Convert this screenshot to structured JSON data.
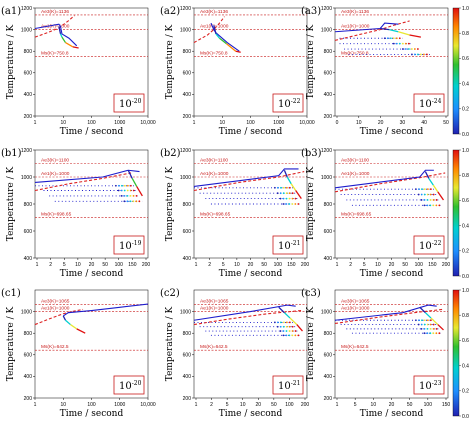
{
  "colors": {
    "ae3": "#c81a1a",
    "ae1": "#c81a1a",
    "ms": "#c81a1a",
    "cooling": "#1c1ccc",
    "kinetic_dashed": "#dd2222",
    "colorbar": [
      "#2020b0",
      "#1e90ff",
      "#00d0d0",
      "#30c030",
      "#e8e830",
      "#ff8800",
      "#e01010"
    ]
  },
  "colorbar": {
    "ticks": [
      "0.0",
      "0.2",
      "0.4",
      "0.6",
      "0.8",
      "1.0"
    ]
  },
  "chart_data": [
    {
      "id": "a1",
      "label": "(a1)",
      "type": "line",
      "row": 0,
      "col": 0,
      "scale": "log",
      "xlim": [
        1,
        10000
      ],
      "ylim": [
        200,
        1200
      ],
      "xticks": [
        {
          "v": 1,
          "t": "1"
        },
        {
          "v": 10,
          "t": "10"
        },
        {
          "v": 100,
          "t": "100"
        },
        {
          "v": 1000,
          "t": "1000"
        },
        {
          "v": 10000,
          "t": "10,000"
        }
      ],
      "yticks": [
        200,
        400,
        600,
        800,
        1000,
        1200
      ],
      "xlabel": "Time / second",
      "ylabel": "Temperature / K",
      "ae3": 1136,
      "ae3_label": "Ae3(K)=1136",
      "ae1": 1000,
      "ae1_label": "Ae1(K)=1000",
      "ms": 750.8,
      "ms_label": "Ms(K)=750.8",
      "level_base": "10",
      "level_exp": "-20",
      "cooling": [
        [
          1,
          1010
        ],
        [
          7,
          1050
        ],
        [
          8,
          1030
        ],
        [
          9,
          960
        ],
        [
          16,
          920
        ],
        [
          30,
          850
        ]
      ],
      "dashed": [
        [
          1,
          930
        ],
        [
          3,
          975
        ],
        [
          7,
          1015
        ],
        [
          15,
          1080
        ],
        [
          25,
          1130
        ]
      ],
      "isothermal": [],
      "colored": [
        [
          [
            7,
            1030
          ],
          [
            8,
            960
          ],
          [
            9,
            930
          ],
          [
            12,
            880
          ],
          [
            22,
            840
          ],
          [
            35,
            830
          ]
        ]
      ]
    },
    {
      "id": "a2",
      "label": "(a2)",
      "type": "line",
      "row": 0,
      "col": 1,
      "scale": "log",
      "xlim": [
        1,
        10000
      ],
      "ylim": [
        200,
        1200
      ],
      "xticks": [
        {
          "v": 1,
          "t": "1"
        },
        {
          "v": 10,
          "t": "10"
        },
        {
          "v": 100,
          "t": "100"
        },
        {
          "v": 1000,
          "t": "1000"
        },
        {
          "v": 10000,
          "t": "10,000"
        }
      ],
      "yticks": [
        200,
        400,
        600,
        800,
        1000,
        1200
      ],
      "xlabel": "Time / second",
      "ylabel": "Temperature / K",
      "ae3": 1136,
      "ae3_label": "Ae3(K)=1136",
      "ae1": 1000,
      "ae1_label": "Ae1(K)=1000",
      "ms": 750.8,
      "ms_label": "Ms(K)=750.8",
      "level_base": "10",
      "level_exp": "-22",
      "cooling": [
        [
          4,
          1060
        ],
        [
          5,
          1000
        ],
        [
          6,
          970
        ],
        [
          15,
          880
        ],
        [
          40,
          800
        ]
      ],
      "dashed": [
        [
          1,
          880
        ],
        [
          3,
          950
        ],
        [
          5,
          1000
        ],
        [
          8,
          1060
        ],
        [
          12,
          1120
        ]
      ],
      "isothermal": [],
      "colored": [
        [
          [
            5,
            1040
          ],
          [
            6,
            960
          ],
          [
            8,
            920
          ],
          [
            14,
            870
          ],
          [
            30,
            800
          ],
          [
            45,
            790
          ]
        ]
      ]
    },
    {
      "id": "a3",
      "label": "(a3)",
      "type": "line",
      "row": 0,
      "col": 2,
      "scale": "linear",
      "xlim": [
        0,
        50
      ],
      "ylim": [
        200,
        1200
      ],
      "xticks": [
        {
          "v": 0,
          "t": "0"
        },
        {
          "v": 10,
          "t": "10"
        },
        {
          "v": 20,
          "t": "20"
        },
        {
          "v": 30,
          "t": "30"
        },
        {
          "v": 40,
          "t": "40"
        },
        {
          "v": 50,
          "t": "50"
        }
      ],
      "yticks": [
        200,
        400,
        600,
        800,
        1000,
        1200
      ],
      "xlabel": "Time / second",
      "ylabel": "Temperature / K",
      "ae3": 1136,
      "ae3_label": "Ae3(K)=1136",
      "ae1": 1000,
      "ae1_label": "Ae1(K)=1000",
      "ms": 750.8,
      "ms_label": "Ms(K)=750.8",
      "level_base": "10",
      "level_exp": "-24",
      "cooling": [
        [
          0,
          980
        ],
        [
          20,
          1010
        ],
        [
          22,
          1060
        ],
        [
          28,
          1050
        ]
      ],
      "dashed": [
        [
          0,
          900
        ],
        [
          10,
          950
        ],
        [
          20,
          1000
        ],
        [
          26,
          1040
        ],
        [
          33,
          1080
        ]
      ],
      "isothermal": [
        [
          2,
          30,
          920
        ],
        [
          2,
          34,
          870
        ],
        [
          4,
          38,
          820
        ],
        [
          6,
          42,
          770
        ]
      ],
      "colored": [
        [
          [
            20,
            1010
          ],
          [
            24,
            1000
          ],
          [
            28,
            980
          ],
          [
            33,
            950
          ],
          [
            38,
            930
          ]
        ]
      ]
    },
    {
      "id": "b1",
      "label": "(b1)",
      "type": "line",
      "row": 1,
      "col": 0,
      "scale": "linear",
      "xlim": [
        0,
        200
      ],
      "ylim": [
        400,
        1200
      ],
      "xticks": [
        {
          "v": 1,
          "t": "1"
        },
        {
          "v": 2,
          "t": "2"
        },
        {
          "v": 5,
          "t": "5"
        },
        {
          "v": 10,
          "t": "10"
        },
        {
          "v": 20,
          "t": "20"
        },
        {
          "v": 50,
          "t": "50"
        },
        {
          "v": 100,
          "t": "100"
        },
        {
          "v": 150,
          "t": "150"
        },
        {
          "v": 200,
          "t": "200"
        }
      ],
      "yticks": [
        400,
        600,
        800,
        1000,
        1200
      ],
      "xlabel": "Time / second",
      "ylabel": "Temperature / K",
      "ae3": 1100,
      "ae3_label": "Ae3(K)=1100",
      "ae1": 1000,
      "ae1_label": "Ae1(K)=1000",
      "ms": 698.65,
      "ms_label": "Ms(K)=698.65",
      "level_base": "10",
      "level_exp": "-19",
      "cooling": [
        [
          0,
          960
        ],
        [
          120,
          1000
        ],
        [
          165,
          1050
        ],
        [
          185,
          1040
        ]
      ],
      "dashed": [
        [
          0,
          900
        ],
        [
          60,
          950
        ],
        [
          120,
          990
        ],
        [
          170,
          1030
        ]
      ],
      "isothermal": [
        [
          0,
          175,
          935
        ],
        [
          15,
          180,
          900
        ],
        [
          25,
          185,
          860
        ],
        [
          35,
          190,
          820
        ]
      ],
      "colored": [
        [
          [
            165,
            1050
          ],
          [
            172,
            990
          ],
          [
            180,
            930
          ],
          [
            190,
            860
          ]
        ]
      ]
    },
    {
      "id": "b2",
      "label": "(b2)",
      "type": "line",
      "row": 1,
      "col": 1,
      "scale": "linear",
      "xlim": [
        0,
        200
      ],
      "ylim": [
        400,
        1200
      ],
      "xticks": [
        {
          "v": 1,
          "t": "1"
        },
        {
          "v": 2,
          "t": "2"
        },
        {
          "v": 5,
          "t": "5"
        },
        {
          "v": 10,
          "t": "10"
        },
        {
          "v": 20,
          "t": "20"
        },
        {
          "v": 50,
          "t": "50"
        },
        {
          "v": 100,
          "t": "100"
        },
        {
          "v": 150,
          "t": "150"
        },
        {
          "v": 200,
          "t": "200"
        }
      ],
      "yticks": [
        400,
        600,
        800,
        1000,
        1200
      ],
      "xlabel": "Time / second",
      "ylabel": "Temperature / K",
      "ae3": 1100,
      "ae3_label": "Ae3(K)=1100",
      "ae1": 1000,
      "ae1_label": "Ae1(K)=1000",
      "ms": 698.65,
      "ms_label": "Ms(K)=698.65",
      "level_base": "10",
      "level_exp": "-21",
      "cooling": [
        [
          0,
          930
        ],
        [
          150,
          1010
        ],
        [
          160,
          1060
        ],
        [
          185,
          1060
        ]
      ],
      "dashed": [
        [
          0,
          900
        ],
        [
          80,
          960
        ],
        [
          150,
          1000
        ],
        [
          195,
          1040
        ]
      ],
      "isothermal": [
        [
          0,
          175,
          920
        ],
        [
          10,
          180,
          880
        ],
        [
          20,
          185,
          840
        ],
        [
          30,
          190,
          800
        ]
      ],
      "colored": [
        [
          [
            160,
            1050
          ],
          [
            165,
            1000
          ],
          [
            172,
            950
          ],
          [
            180,
            900
          ],
          [
            190,
            840
          ]
        ]
      ]
    },
    {
      "id": "b3",
      "label": "(b3)",
      "type": "line",
      "row": 1,
      "col": 2,
      "scale": "linear",
      "xlim": [
        0,
        200
      ],
      "ylim": [
        400,
        1200
      ],
      "xticks": [
        {
          "v": 1,
          "t": "1"
        },
        {
          "v": 2,
          "t": "2"
        },
        {
          "v": 5,
          "t": "5"
        },
        {
          "v": 10,
          "t": "10"
        },
        {
          "v": 20,
          "t": "20"
        },
        {
          "v": 50,
          "t": "50"
        },
        {
          "v": 100,
          "t": "100"
        },
        {
          "v": 150,
          "t": "150"
        },
        {
          "v": 200,
          "t": "200"
        }
      ],
      "yticks": [
        400,
        600,
        800,
        1000,
        1200
      ],
      "xlabel": "Time / second",
      "ylabel": "Temperature / K",
      "ae3": 1100,
      "ae3_label": "Ae3(K)=1100",
      "ae1": 1000,
      "ae1_label": "Ae1(K)=1000",
      "ms": 698.65,
      "ms_label": "Ms(K)=698.65",
      "level_base": "10",
      "level_exp": "-22",
      "cooling": [
        [
          0,
          920
        ],
        [
          150,
          1000
        ],
        [
          160,
          1050
        ],
        [
          175,
          1050
        ]
      ],
      "dashed": [
        [
          0,
          890
        ],
        [
          80,
          950
        ],
        [
          150,
          995
        ],
        [
          195,
          1030
        ]
      ],
      "isothermal": [
        [
          0,
          175,
          910
        ],
        [
          10,
          180,
          870
        ],
        [
          20,
          185,
          830
        ],
        [
          30,
          190,
          790
        ]
      ],
      "colored": [
        [
          [
            160,
            1040
          ],
          [
            166,
            990
          ],
          [
            174,
            940
          ],
          [
            182,
            890
          ],
          [
            192,
            830
          ]
        ]
      ]
    },
    {
      "id": "c1",
      "label": "(c1)",
      "type": "line",
      "row": 2,
      "col": 0,
      "scale": "log",
      "xlim": [
        1,
        10000
      ],
      "ylim": [
        200,
        1200
      ],
      "xticks": [
        {
          "v": 1,
          "t": "1"
        },
        {
          "v": 10,
          "t": "10"
        },
        {
          "v": 100,
          "t": "100"
        },
        {
          "v": 1000,
          "t": "1000"
        },
        {
          "v": 10000,
          "t": "10,000"
        }
      ],
      "yticks": [
        200,
        400,
        600,
        800,
        1000
      ],
      "xlabel": "Time / second",
      "ylabel": "Temperature / K",
      "ae3": 1065,
      "ae3_label": "Ae3(K)=1065",
      "ae1": 1000,
      "ae1_label": "Ae1(K)=1000",
      "ms": 642.5,
      "ms_label": "Ms(K)=642.5",
      "level_base": "10",
      "level_exp": "-20",
      "cooling": [
        [
          10,
          960
        ],
        [
          15,
          990
        ],
        [
          100,
          1010
        ],
        [
          1000,
          1040
        ],
        [
          10000,
          1070
        ]
      ],
      "dashed": [
        [
          1,
          880
        ],
        [
          3,
          930
        ],
        [
          10,
          980
        ],
        [
          20,
          1000
        ],
        [
          50,
          1020
        ]
      ],
      "isothermal": [],
      "colored": [
        [
          [
            10,
            960
          ],
          [
            12,
            920
          ],
          [
            18,
            880
          ],
          [
            30,
            840
          ],
          [
            60,
            800
          ]
        ]
      ]
    },
    {
      "id": "c2",
      "label": "(c2)",
      "type": "line",
      "row": 2,
      "col": 1,
      "scale": "linear",
      "xlim": [
        0,
        200
      ],
      "ylim": [
        200,
        1200
      ],
      "xticks": [
        {
          "v": 1,
          "t": "1"
        },
        {
          "v": 2,
          "t": "2"
        },
        {
          "v": 5,
          "t": "5"
        },
        {
          "v": 10,
          "t": "10"
        },
        {
          "v": 20,
          "t": "20"
        },
        {
          "v": 50,
          "t": "50"
        },
        {
          "v": 100,
          "t": "100"
        },
        {
          "v": 200,
          "t": "200"
        }
      ],
      "yticks": [
        200,
        400,
        600,
        800,
        1000
      ],
      "xlabel": "Time / second",
      "ylabel": "Temperature / K",
      "ae3": 1065,
      "ae3_label": "Ae3(K)=1065",
      "ae1": 1000,
      "ae1_label": "Ae1(K)=1000",
      "ms": 642.5,
      "ms_label": "Ms(K)=642.5",
      "level_base": "10",
      "level_exp": "-21",
      "cooling": [
        [
          0,
          920
        ],
        [
          100,
          1000
        ],
        [
          165,
          1060
        ],
        [
          180,
          1050
        ]
      ],
      "dashed": [
        [
          0,
          880
        ],
        [
          60,
          930
        ],
        [
          130,
          980
        ],
        [
          190,
          1010
        ]
      ],
      "isothermal": [
        [
          0,
          175,
          900
        ],
        [
          10,
          180,
          860
        ],
        [
          20,
          185,
          820
        ],
        [
          30,
          190,
          780
        ]
      ],
      "colored": [
        [
          [
            150,
            1040
          ],
          [
            160,
            990
          ],
          [
            170,
            940
          ],
          [
            182,
            880
          ],
          [
            192,
            820
          ]
        ]
      ]
    },
    {
      "id": "c3",
      "label": "(c3)",
      "type": "line",
      "row": 2,
      "col": 2,
      "scale": "linear",
      "xlim": [
        0,
        200
      ],
      "ylim": [
        200,
        1200
      ],
      "xticks": [
        {
          "v": 1,
          "t": "1"
        },
        {
          "v": 5,
          "t": "5"
        },
        {
          "v": 10,
          "t": "10"
        },
        {
          "v": 20,
          "t": "20"
        },
        {
          "v": 50,
          "t": "50"
        },
        {
          "v": 100,
          "t": "100"
        },
        {
          "v": 150,
          "t": "150"
        }
      ],
      "yticks": [
        200,
        400,
        600,
        800,
        1000
      ],
      "xlabel": "Time / second",
      "ylabel": "Temperature / K",
      "ae3": 1065,
      "ae3_label": "Ae3(K)=1065",
      "ae1": 1000,
      "ae1_label": "Ae1(K)=1000",
      "ms": 642.5,
      "ms_label": "Ms(K)=642.5",
      "level_base": "10",
      "level_exp": "-23",
      "cooling": [
        [
          0,
          920
        ],
        [
          120,
          990
        ],
        [
          165,
          1060
        ],
        [
          180,
          1050
        ]
      ],
      "dashed": [
        [
          0,
          890
        ],
        [
          80,
          950
        ],
        [
          140,
          990
        ],
        [
          190,
          1020
        ]
      ],
      "isothermal": [
        [
          0,
          175,
          920
        ],
        [
          10,
          180,
          880
        ],
        [
          20,
          185,
          840
        ],
        [
          30,
          190,
          800
        ]
      ],
      "colored": [
        [
          [
            150,
            1040
          ],
          [
            160,
            990
          ],
          [
            170,
            940
          ],
          [
            182,
            880
          ],
          [
            192,
            830
          ]
        ]
      ]
    }
  ]
}
